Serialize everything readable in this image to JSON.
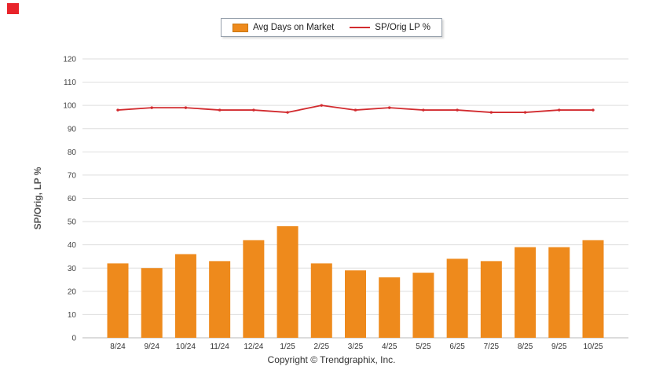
{
  "corner_marker_color": "#e8242b",
  "legend": {
    "items": [
      {
        "label": "Avg Days on Market",
        "type": "bar",
        "color": "#ee8a1c"
      },
      {
        "label": "SP/Orig LP %",
        "type": "line",
        "color": "#d22b2f"
      }
    ]
  },
  "chart_data": {
    "type": "bar+line",
    "categories": [
      "8/24",
      "9/24",
      "10/24",
      "11/24",
      "12/24",
      "1/25",
      "2/25",
      "3/25",
      "4/25",
      "5/25",
      "6/25",
      "7/25",
      "8/25",
      "9/25",
      "10/25"
    ],
    "series": [
      {
        "name": "Avg Days on Market",
        "type": "bar",
        "color": "#ee8a1c",
        "values": [
          32,
          30,
          36,
          33,
          42,
          48,
          32,
          29,
          26,
          28,
          34,
          33,
          39,
          39,
          42
        ]
      },
      {
        "name": "SP/Orig LP %",
        "type": "line",
        "color": "#d22b2f",
        "values": [
          98,
          99,
          99,
          98,
          98,
          97,
          100,
          98,
          99,
          98,
          98,
          97,
          97,
          98,
          98
        ]
      }
    ],
    "title": "",
    "xlabel": "",
    "ylabel": "SP/Orig, LP %",
    "ylim": [
      0,
      120
    ],
    "ytick_step": 10,
    "grid": true,
    "legend_position": "top",
    "grid_color": "#dedede",
    "axis_text_color": "#444444",
    "axis_title_color": "#555555"
  },
  "footer": {
    "copyright": "Copyright © Trendgraphix, Inc."
  }
}
